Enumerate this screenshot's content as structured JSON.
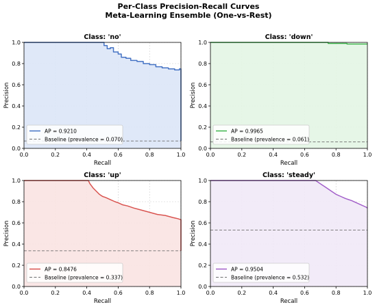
{
  "suptitle": {
    "line1": "Per-Class Precision-Recall Curves",
    "line2": "Meta-Learning Ensemble (One-vs-Rest)"
  },
  "chart_data": [
    {
      "type": "area",
      "title": "Class: 'no'",
      "xlabel": "Recall",
      "ylabel": "Precision",
      "xlim": [
        0,
        1.0
      ],
      "ylim": [
        0,
        1.0
      ],
      "xticks": [
        "0.0",
        "0.2",
        "0.4",
        "0.6",
        "0.8",
        "1.0"
      ],
      "yticks": [
        "0.0",
        "0.2",
        "0.4",
        "0.6",
        "0.8",
        "1.0"
      ],
      "grid": true,
      "legend_position": "lower-left",
      "color": "#4472c4",
      "fill_color": "#dce6f7",
      "ap_label": "AP = 0.9210",
      "baseline_label": "Baseline (prevalence = 0.070)",
      "baseline": 0.07,
      "x": [
        0.0,
        0.51,
        0.51,
        0.53,
        0.53,
        0.55,
        0.55,
        0.57,
        0.57,
        0.6,
        0.6,
        0.62,
        0.62,
        0.65,
        0.65,
        0.68,
        0.68,
        0.72,
        0.72,
        0.76,
        0.76,
        0.8,
        0.8,
        0.84,
        0.84,
        0.88,
        0.88,
        0.92,
        0.92,
        0.96,
        0.96,
        0.99,
        0.99,
        1.0,
        1.0
      ],
      "y": [
        1.0,
        1.0,
        0.97,
        0.97,
        0.94,
        0.94,
        0.95,
        0.95,
        0.91,
        0.91,
        0.89,
        0.89,
        0.86,
        0.86,
        0.85,
        0.85,
        0.83,
        0.83,
        0.82,
        0.82,
        0.8,
        0.8,
        0.79,
        0.79,
        0.77,
        0.77,
        0.76,
        0.76,
        0.75,
        0.75,
        0.74,
        0.74,
        0.75,
        0.75,
        0.07
      ]
    },
    {
      "type": "area",
      "title": "Class: 'down'",
      "xlabel": "Recall",
      "ylabel": "Precision",
      "xlim": [
        0,
        1.0
      ],
      "ylim": [
        0,
        1.0
      ],
      "xticks": [
        "0.0",
        "0.2",
        "0.4",
        "0.6",
        "0.8",
        "1.0"
      ],
      "yticks": [
        "0.0",
        "0.2",
        "0.4",
        "0.6",
        "0.8",
        "1.0"
      ],
      "grid": true,
      "legend_position": "lower-left",
      "color": "#3cb54a",
      "fill_color": "#e3f5e4",
      "ap_label": "AP = 0.9965",
      "baseline_label": "Baseline (prevalence = 0.061)",
      "baseline": 0.061,
      "x": [
        0.0,
        0.75,
        0.75,
        0.87,
        0.87,
        1.0
      ],
      "y": [
        1.0,
        1.0,
        0.99,
        0.99,
        0.985,
        0.985
      ]
    },
    {
      "type": "area",
      "title": "Class: 'up'",
      "xlabel": "Recall",
      "ylabel": "Precision",
      "xlim": [
        0,
        1.0
      ],
      "ylim": [
        0,
        1.0
      ],
      "xticks": [
        "0.0",
        "0.2",
        "0.4",
        "0.6",
        "0.8",
        "1.0"
      ],
      "yticks": [
        "0.0",
        "0.2",
        "0.4",
        "0.6",
        "0.8",
        "1.0"
      ],
      "grid": true,
      "legend_position": "lower-left",
      "color": "#d9534f",
      "fill_color": "#f9e3e2",
      "ap_label": "AP = 0.8476",
      "baseline_label": "Baseline (prevalence = 0.337)",
      "baseline": 0.337,
      "x": [
        0.0,
        0.41,
        0.42,
        0.44,
        0.46,
        0.48,
        0.5,
        0.52,
        0.55,
        0.58,
        0.6,
        0.63,
        0.66,
        0.7,
        0.75,
        0.8,
        0.85,
        0.9,
        0.95,
        0.98,
        1.0,
        1.0
      ],
      "y": [
        1.0,
        1.0,
        0.97,
        0.93,
        0.9,
        0.87,
        0.85,
        0.84,
        0.82,
        0.8,
        0.79,
        0.77,
        0.76,
        0.74,
        0.72,
        0.7,
        0.68,
        0.67,
        0.65,
        0.64,
        0.63,
        0.337
      ]
    },
    {
      "type": "area",
      "title": "Class: 'steady'",
      "xlabel": "Recall",
      "ylabel": "Precision",
      "xlim": [
        0,
        1.0
      ],
      "ylim": [
        0,
        1.0
      ],
      "xticks": [
        "0.0",
        "0.2",
        "0.4",
        "0.6",
        "0.8",
        "1.0"
      ],
      "yticks": [
        "0.0",
        "0.2",
        "0.4",
        "0.6",
        "0.8",
        "1.0"
      ],
      "grid": true,
      "legend_position": "lower-left",
      "color": "#a25fc9",
      "fill_color": "#f1e9f7",
      "ap_label": "AP = 0.9504",
      "baseline_label": "Baseline (prevalence = 0.532)",
      "baseline": 0.532,
      "x": [
        0.0,
        0.67,
        0.69,
        0.71,
        0.73,
        0.75,
        0.77,
        0.8,
        0.83,
        0.86,
        0.9,
        0.93,
        0.96,
        0.99,
        1.0
      ],
      "y": [
        1.0,
        1.0,
        0.98,
        0.96,
        0.94,
        0.92,
        0.9,
        0.87,
        0.85,
        0.83,
        0.81,
        0.79,
        0.77,
        0.75,
        0.74
      ]
    }
  ]
}
